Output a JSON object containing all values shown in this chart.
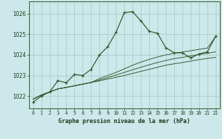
{
  "title": "Graphe pression niveau de la mer (hPa)",
  "bg_color": "#cce8ea",
  "grid_color": "#aacccc",
  "line_color": "#2d5a2d",
  "x_labels": [
    "0",
    "1",
    "2",
    "3",
    "4",
    "5",
    "6",
    "7",
    "8",
    "9",
    "10",
    "11",
    "12",
    "13",
    "14",
    "15",
    "16",
    "17",
    "18",
    "19",
    "20",
    "21",
    "22"
  ],
  "ylim": [
    1021.4,
    1026.6
  ],
  "yticks": [
    1022,
    1023,
    1024,
    1025,
    1026
  ],
  "main_series": [
    1021.7,
    1022.0,
    1022.2,
    1022.75,
    1022.65,
    1023.05,
    1023.0,
    1023.3,
    1024.0,
    1024.4,
    1025.1,
    1026.05,
    1026.1,
    1025.65,
    1025.15,
    1025.05,
    1024.35,
    1024.1,
    1024.1,
    1023.85,
    1024.05,
    1024.15,
    1024.9
  ],
  "line2": [
    1021.85,
    1022.05,
    1022.2,
    1022.35,
    1022.42,
    1022.5,
    1022.58,
    1022.66,
    1022.74,
    1022.83,
    1022.91,
    1023.0,
    1023.1,
    1023.2,
    1023.3,
    1023.4,
    1023.5,
    1023.57,
    1023.63,
    1023.7,
    1023.77,
    1023.83,
    1023.88
  ],
  "line3": [
    1021.85,
    1022.05,
    1022.2,
    1022.35,
    1022.42,
    1022.5,
    1022.58,
    1022.66,
    1022.78,
    1022.9,
    1023.02,
    1023.15,
    1023.28,
    1023.4,
    1023.52,
    1023.63,
    1023.73,
    1023.82,
    1023.88,
    1023.95,
    1024.02,
    1024.08,
    1024.15
  ],
  "line4": [
    1021.85,
    1022.05,
    1022.2,
    1022.35,
    1022.42,
    1022.5,
    1022.58,
    1022.66,
    1022.85,
    1023.0,
    1023.15,
    1023.32,
    1023.5,
    1023.65,
    1023.78,
    1023.9,
    1024.0,
    1024.08,
    1024.14,
    1024.2,
    1024.27,
    1024.33,
    1024.9
  ]
}
